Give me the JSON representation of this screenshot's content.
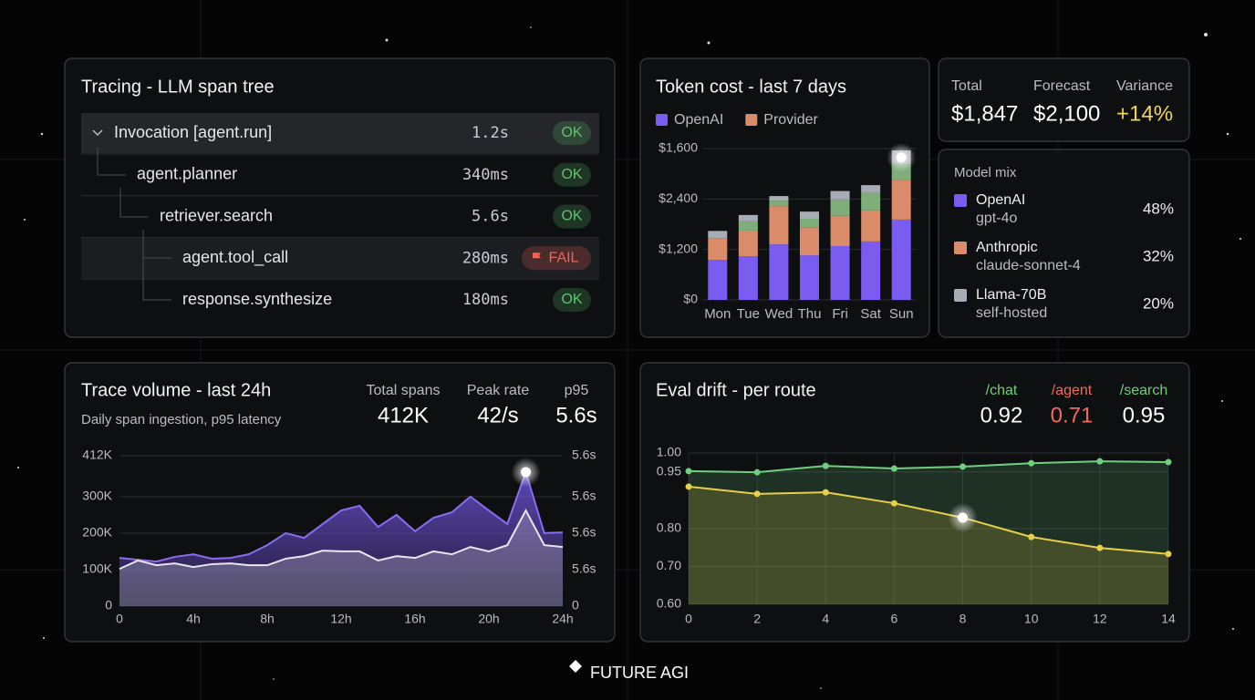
{
  "tracing": {
    "title": "Tracing - LLM span tree",
    "rows": [
      {
        "label": "Invocation [agent.run]",
        "duration": "1.2s",
        "status": "OK",
        "status_color": "#5fc46e"
      },
      {
        "label": "agent.planner",
        "duration": "340ms",
        "status": "OK",
        "status_color": "#5fc46e"
      },
      {
        "label": "retriever.search",
        "duration": "5.6s",
        "status": "OK",
        "status_color": "#5fc46e"
      },
      {
        "label": "agent.tool_call",
        "duration": "280ms",
        "status": "FAIL",
        "status_color": "#f0625a"
      },
      {
        "label": "response.synthesize",
        "duration": "180ms",
        "status": "OK",
        "status_color": "#5fc46e"
      }
    ]
  },
  "cost_summary": [
    {
      "label": "Total",
      "value": "$1,847",
      "color": "#ffffff"
    },
    {
      "label": "Forecast",
      "value": "$2,100",
      "color": "#ffffff"
    },
    {
      "label": "Variance",
      "value": "+14%",
      "color": "#f3d35a"
    }
  ],
  "model_mix": {
    "title": "Model mix",
    "rows": [
      {
        "name": "OpenAI",
        "detail": "gpt-4o",
        "share": "48%",
        "color": "#7b5cf0"
      },
      {
        "name": "Anthropic",
        "detail": "claude-sonnet-4",
        "share": "32%",
        "color": "#d98b6a"
      },
      {
        "name": "Llama-70B",
        "detail": "self-hosted",
        "share": "20%",
        "color": "#a7adb5"
      }
    ]
  },
  "trace_stats": [
    {
      "label": "Total spans",
      "value": "412K"
    },
    {
      "label": "Peak rate",
      "value": "42/s"
    },
    {
      "label": "p95",
      "value": "5.6s"
    }
  ],
  "eval_stats": [
    {
      "label": "/chat",
      "value": "0.92",
      "color": "#6fcf7f"
    },
    {
      "label": "/agent",
      "value": "0.71",
      "color": "#f06a5e"
    },
    {
      "label": "/search",
      "value": "0.95",
      "color": "#6fcf7f"
    }
  ],
  "brand": "FUTURE AGI",
  "chart_data": [
    {
      "type": "bar",
      "stacked": true,
      "title": "Token cost - last 7 days",
      "categories": [
        "Mon",
        "Tue",
        "Wed",
        "Thu",
        "Fri",
        "Sat",
        "Sun"
      ],
      "series": [
        {
          "name": "OpenAI",
          "color": "#7b5cf0",
          "values": [
            950,
            1040,
            1320,
            1060,
            1280,
            1390,
            1910
          ]
        },
        {
          "name": "Provider",
          "color": "#d98b6a",
          "values": [
            520,
            610,
            910,
            670,
            720,
            740,
            950
          ]
        },
        {
          "color": "#7fae7a",
          "values": [
            0,
            220,
            130,
            200,
            390,
            430,
            370
          ]
        },
        {
          "color": "#a7adb5",
          "values": [
            170,
            150,
            110,
            170,
            200,
            170,
            330
          ]
        }
      ],
      "ylim": [
        0,
        3600
      ],
      "yticks": [
        {
          "value": 0,
          "label": "$0"
        },
        {
          "value": 1200,
          "label": "$1,200"
        },
        {
          "value": 2400,
          "label": "$2,400"
        }
      ],
      "ytop_label": "$1,600",
      "grid": true
    },
    {
      "type": "area",
      "title": "Trace volume - last 24h",
      "subtitle": "Daily span ingestion, p95 latency",
      "x": [
        0,
        1,
        2,
        3,
        4,
        5,
        6,
        7,
        8,
        9,
        10,
        11,
        12,
        13,
        14,
        15,
        16,
        17,
        18,
        19,
        20,
        21,
        22,
        23,
        24
      ],
      "series": [
        {
          "color": "#8a6cf0",
          "fill": true,
          "values": [
            132000,
            127000,
            122000,
            135000,
            142000,
            130000,
            132000,
            142000,
            167000,
            200000,
            187000,
            225000,
            262000,
            275000,
            217000,
            250000,
            205000,
            242000,
            257000,
            300000,
            262000,
            225000,
            367000,
            200000,
            202000
          ]
        },
        {
          "color": "#e8e6f0",
          "fill": true,
          "values": [
            102000,
            125000,
            112000,
            117000,
            107000,
            115000,
            117000,
            112000,
            112000,
            130000,
            137000,
            152000,
            150000,
            150000,
            125000,
            137000,
            132000,
            150000,
            142000,
            162000,
            150000,
            167000,
            262000,
            167000,
            162000
          ]
        }
      ],
      "xlim": [
        0,
        24
      ],
      "xticks": [
        0,
        {
          "value": 4,
          "label": "4h"
        },
        {
          "value": 8,
          "label": "8h"
        },
        {
          "value": 12,
          "label": "12h"
        },
        {
          "value": 16,
          "label": "16h"
        },
        {
          "value": 20,
          "label": "20h"
        },
        {
          "value": 24,
          "label": "24h"
        }
      ],
      "ylim": [
        0,
        412000
      ],
      "yticks": [
        0,
        {
          "value": 100000,
          "label": "100K"
        },
        {
          "value": 200000,
          "label": "200K"
        },
        {
          "value": 300000,
          "label": "300K"
        },
        {
          "value": 412000,
          "label": "412K"
        }
      ],
      "y2_labels": [
        "0",
        "5.6s",
        "5.6s",
        "5.6s",
        "5.6s"
      ],
      "grid": true
    },
    {
      "type": "line",
      "title": "Eval drift - per route",
      "x": [
        0,
        2,
        4,
        6,
        8,
        10,
        12,
        14
      ],
      "series": [
        {
          "color": "#6fcf7f",
          "values": [
            0.952,
            0.949,
            0.966,
            0.959,
            0.964,
            0.973,
            0.978,
            0.976
          ]
        },
        {
          "color": "#e8cf4a",
          "values": [
            0.911,
            0.892,
            0.896,
            0.867,
            0.829,
            0.778,
            0.749,
            0.733
          ]
        }
      ],
      "xlim": [
        0,
        14
      ],
      "xticks": [
        0,
        2,
        4,
        6,
        8,
        10,
        12,
        14
      ],
      "ylim": [
        0.6,
        1.0
      ],
      "yticks": [
        {
          "value": 0.6,
          "label": "0.60"
        },
        {
          "value": 0.7,
          "label": "0.70"
        },
        {
          "value": 0.8,
          "label": "0.80"
        },
        {
          "value": 0.95,
          "label": "0.95"
        },
        {
          "value": 1.0,
          "label": "1.00"
        }
      ],
      "grid": true
    }
  ]
}
